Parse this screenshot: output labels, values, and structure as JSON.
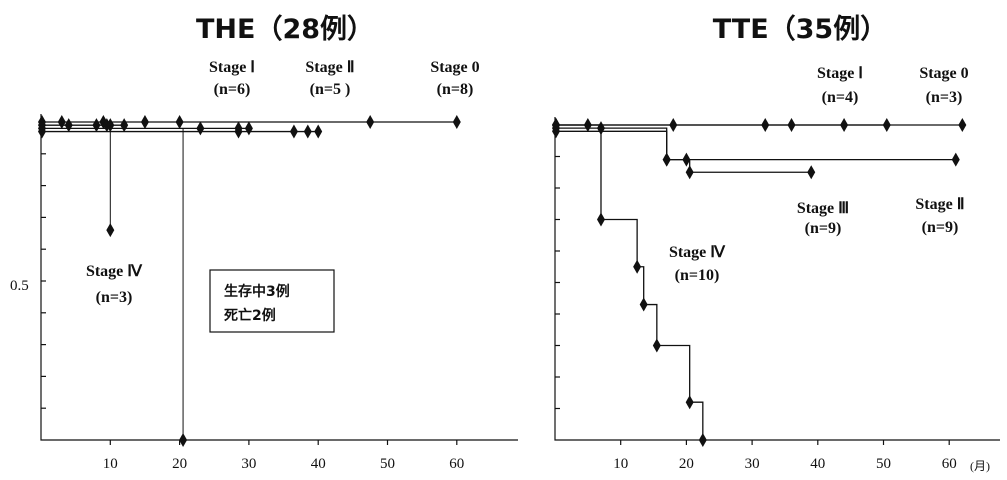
{
  "chart_data": [
    {
      "type": "line",
      "title": "THE（28例）",
      "xlim": [
        0,
        70
      ],
      "ylim": [
        0,
        1.0
      ],
      "x_ticks": [
        "10",
        "20",
        "30",
        "40",
        "50",
        "60"
      ],
      "y_tick_label": "0.5",
      "series": [
        {
          "name": "Stage Ⅱ",
          "n_label": "(n=5 )",
          "x": [
            0,
            23,
            28.5,
            30
          ],
          "y": [
            0.98,
            0.98,
            0.98,
            0.98
          ]
        },
        {
          "name": "Stage Ⅰ",
          "n_label": "(n=6)",
          "x": [
            0,
            28.5,
            36.5,
            38.5,
            40
          ],
          "y": [
            0.97,
            0.97,
            0.97,
            0.97,
            0.97
          ]
        },
        {
          "name": "Stage 0",
          "n_label": "(n=8)",
          "x": [
            0,
            3,
            9,
            15,
            20,
            47.5,
            60
          ],
          "y": [
            1.0,
            1.0,
            1.0,
            1.0,
            1.0,
            1.0,
            1.0
          ]
        },
        {
          "name": "Stage Ⅳ",
          "n_label": "(n=3)",
          "x": [
            0,
            4,
            8,
            9.5,
            10,
            12
          ],
          "y": [
            0.99,
            0.99,
            0.99,
            0.99,
            0.99,
            0.99
          ]
        }
      ],
      "events": [
        {
          "x": 10,
          "y_from": 0.99,
          "y_to": 0.66
        },
        {
          "x": 20.5,
          "y_from": 0.98,
          "y_to": 0.0
        }
      ],
      "annotation": [
        "生存中3例",
        "死亡2例"
      ]
    },
    {
      "type": "line",
      "title": "TTE（35例）",
      "xlim": [
        0,
        70
      ],
      "ylim": [
        0,
        1.0
      ],
      "x_ticks": [
        "10",
        "20",
        "30",
        "40",
        "50",
        "60"
      ],
      "unit_label": "(月)",
      "series": [
        {
          "name": "Stage Ⅰ",
          "n_label": "(n=4)",
          "x": [
            0,
            18,
            32,
            36,
            44,
            50.5
          ],
          "y": [
            1.0,
            1.0,
            1.0,
            1.0,
            1.0,
            1.0
          ]
        },
        {
          "name": "Stage 0",
          "n_label": "(n=3)",
          "x": [
            0,
            5,
            62
          ],
          "y": [
            1.0,
            1.0,
            1.0
          ]
        },
        {
          "name": "Stage Ⅲ",
          "n_label": "(n=9)",
          "x": [
            0,
            7,
            17,
            17,
            20.5,
            20.5,
            39
          ],
          "y": [
            0.99,
            0.99,
            0.99,
            0.89,
            0.89,
            0.85,
            0.85
          ]
        },
        {
          "name": "Stage Ⅱ",
          "n_label": "(n=9)",
          "x": [
            0,
            17,
            17,
            20,
            61
          ],
          "y": [
            0.98,
            0.98,
            0.89,
            0.89,
            0.89
          ]
        },
        {
          "name": "Stage Ⅳ",
          "n_label": "(n=10)",
          "x": [
            0,
            7,
            7,
            12.5,
            12.5,
            13.5,
            13.5,
            15.5,
            15.5,
            20.5,
            20.5,
            22.5,
            22.5
          ],
          "y": [
            1.0,
            1.0,
            0.7,
            0.7,
            0.55,
            0.55,
            0.43,
            0.43,
            0.3,
            0.3,
            0.12,
            0.12,
            0.0
          ]
        }
      ]
    }
  ]
}
